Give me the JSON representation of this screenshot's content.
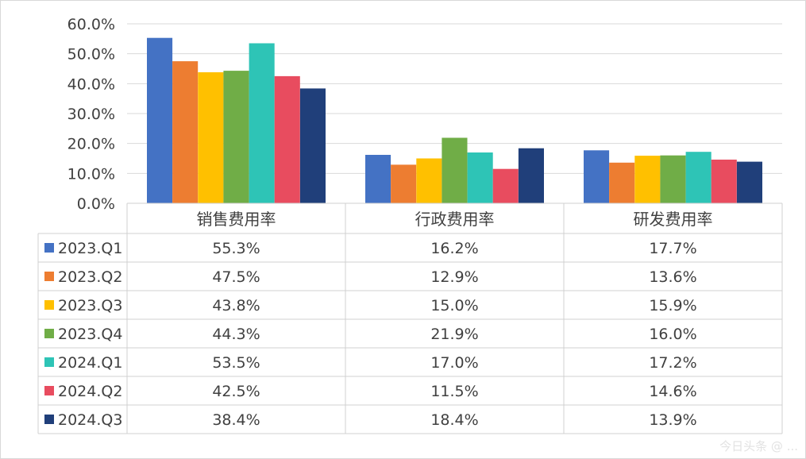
{
  "chart_data": {
    "type": "bar",
    "categories": [
      "销售费用率",
      "行政费用率",
      "研发费用率"
    ],
    "y_ticks": [
      "0.0%",
      "10.0%",
      "20.0%",
      "30.0%",
      "40.0%",
      "50.0%",
      "60.0%"
    ],
    "ylim": [
      0,
      60
    ],
    "grid": true,
    "legend": "data-table-left",
    "series": [
      {
        "name": "2023.Q1",
        "color": "#4472C4",
        "values": [
          55.3,
          16.2,
          17.7
        ],
        "labels": [
          "55.3%",
          "16.2%",
          "17.7%"
        ]
      },
      {
        "name": "2023.Q2",
        "color": "#ED7D31",
        "values": [
          47.5,
          12.9,
          13.6
        ],
        "labels": [
          "47.5%",
          "12.9%",
          "13.6%"
        ]
      },
      {
        "name": "2023.Q3",
        "color": "#FFC000",
        "values": [
          43.8,
          15.0,
          15.9
        ],
        "labels": [
          "43.8%",
          "15.0%",
          "15.9%"
        ]
      },
      {
        "name": "2023.Q4",
        "color": "#70AD47",
        "values": [
          44.3,
          21.9,
          16.0
        ],
        "labels": [
          "44.3%",
          "21.9%",
          "16.0%"
        ]
      },
      {
        "name": "2024.Q1",
        "color": "#2EC4B6",
        "values": [
          53.5,
          17.0,
          17.2
        ],
        "labels": [
          "53.5%",
          "17.0%",
          "17.2%"
        ]
      },
      {
        "name": "2024.Q2",
        "color": "#E84C5F",
        "values": [
          42.5,
          11.5,
          14.6
        ],
        "labels": [
          "42.5%",
          "11.5%",
          "14.6%"
        ]
      },
      {
        "name": "2024.Q3",
        "color": "#203F7A",
        "values": [
          38.4,
          18.4,
          13.9
        ],
        "labels": [
          "38.4%",
          "18.4%",
          "13.9%"
        ]
      }
    ]
  },
  "watermark": "今日头条 @ ..."
}
